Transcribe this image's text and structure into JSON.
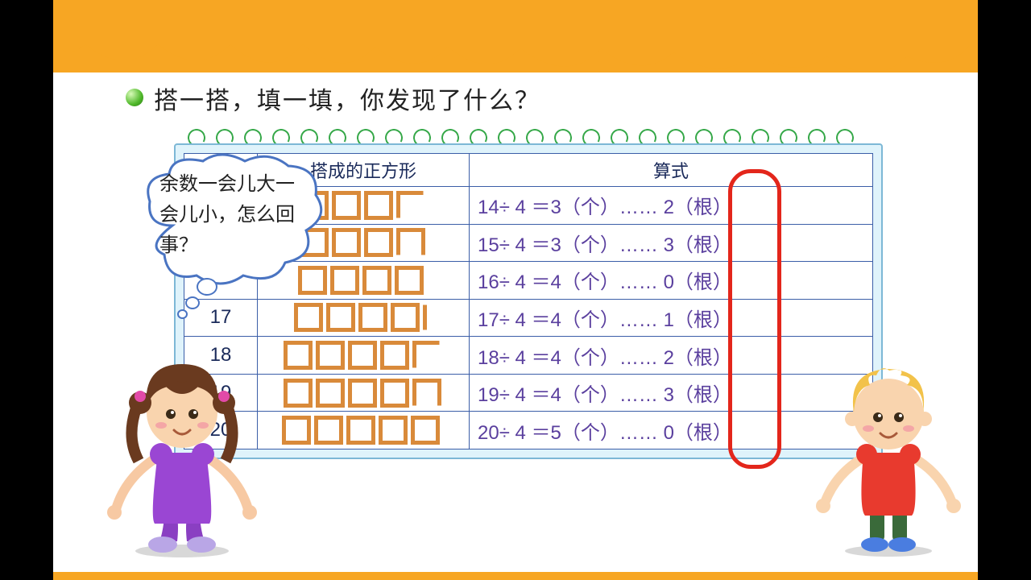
{
  "slide": {
    "title": "搭一搭，填一填，你发现了什么？",
    "bullet_color": "#4fb82a",
    "frame_color": "#f7a623",
    "table": {
      "headers": {
        "col1": "",
        "col2": "搭成的正方形",
        "col3": "算式"
      },
      "rows": [
        {
          "n": "",
          "squares": 3,
          "extra": 2,
          "eq": "14÷ 4 ＝3（个）…… 2（根）",
          "rem": "2"
        },
        {
          "n": "",
          "squares": 3,
          "extra": 3,
          "eq": "15÷ 4 ＝3（个）…… 3（根）",
          "rem": "3"
        },
        {
          "n": "",
          "squares": 4,
          "extra": 0,
          "eq": "16÷ 4 ＝4（个）…… 0（根）",
          "rem": "0"
        },
        {
          "n": "17",
          "squares": 4,
          "extra": 1,
          "eq": "17÷ 4 ＝4（个）…… 1（根）",
          "rem": "1"
        },
        {
          "n": "18",
          "squares": 4,
          "extra": 2,
          "eq": "18÷ 4 ＝4（个）…… 2（根）",
          "rem": "2"
        },
        {
          "n": "19",
          "squares": 4,
          "extra": 3,
          "eq": "19÷ 4 ＝4（个）…… 3（根）",
          "rem": "3"
        },
        {
          "n": "20",
          "squares": 5,
          "extra": 0,
          "eq": "20÷ 4 ＝5（个）…… 0（根）",
          "rem": "0"
        }
      ],
      "border_color": "#3b5ea8",
      "text_color": "#5a3f9e",
      "pad_bg": "#dff3fb",
      "square_stroke": "#d98a3a"
    },
    "ring_color": "#e3261b",
    "bubble_text": "余数一会儿大一会儿小，怎么回事？"
  }
}
